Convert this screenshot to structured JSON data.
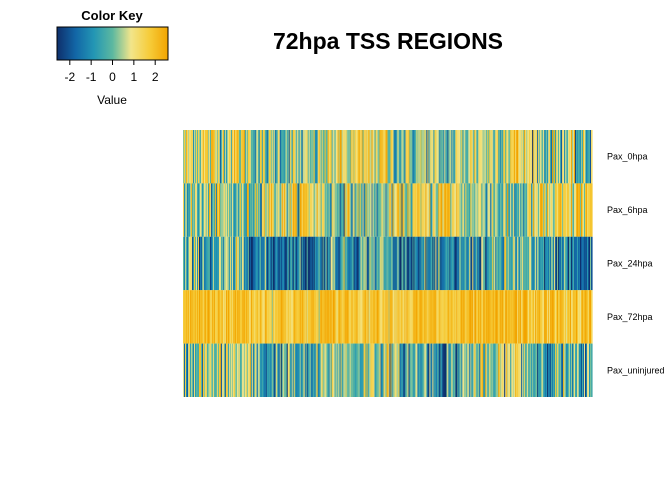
{
  "chart_data": {
    "type": "heatmap",
    "title": "72hpa TSS REGIONS",
    "rows": [
      "Pax_0hpa",
      "Pax_6hpa",
      "Pax_24hpa",
      "Pax_72hpa",
      "Pax_uninjured"
    ],
    "row_mean_z": [
      0.6,
      0.7,
      -0.9,
      1.9,
      -0.1
    ],
    "value_range": [
      -2.6,
      2.6
    ],
    "color_key": {
      "title": "Color Key",
      "xlabel": "Value",
      "ticks": [
        -2,
        -1,
        0,
        1,
        2
      ],
      "tick_labels": [
        "-2",
        "-1",
        "0",
        "1",
        "2"
      ],
      "colors": [
        "#0e2f6b",
        "#1266a6",
        "#2396b4",
        "#5cb8a0",
        "#f2e58a",
        "#f6cc3a",
        "#f2a400"
      ]
    },
    "n_columns": 410
  }
}
